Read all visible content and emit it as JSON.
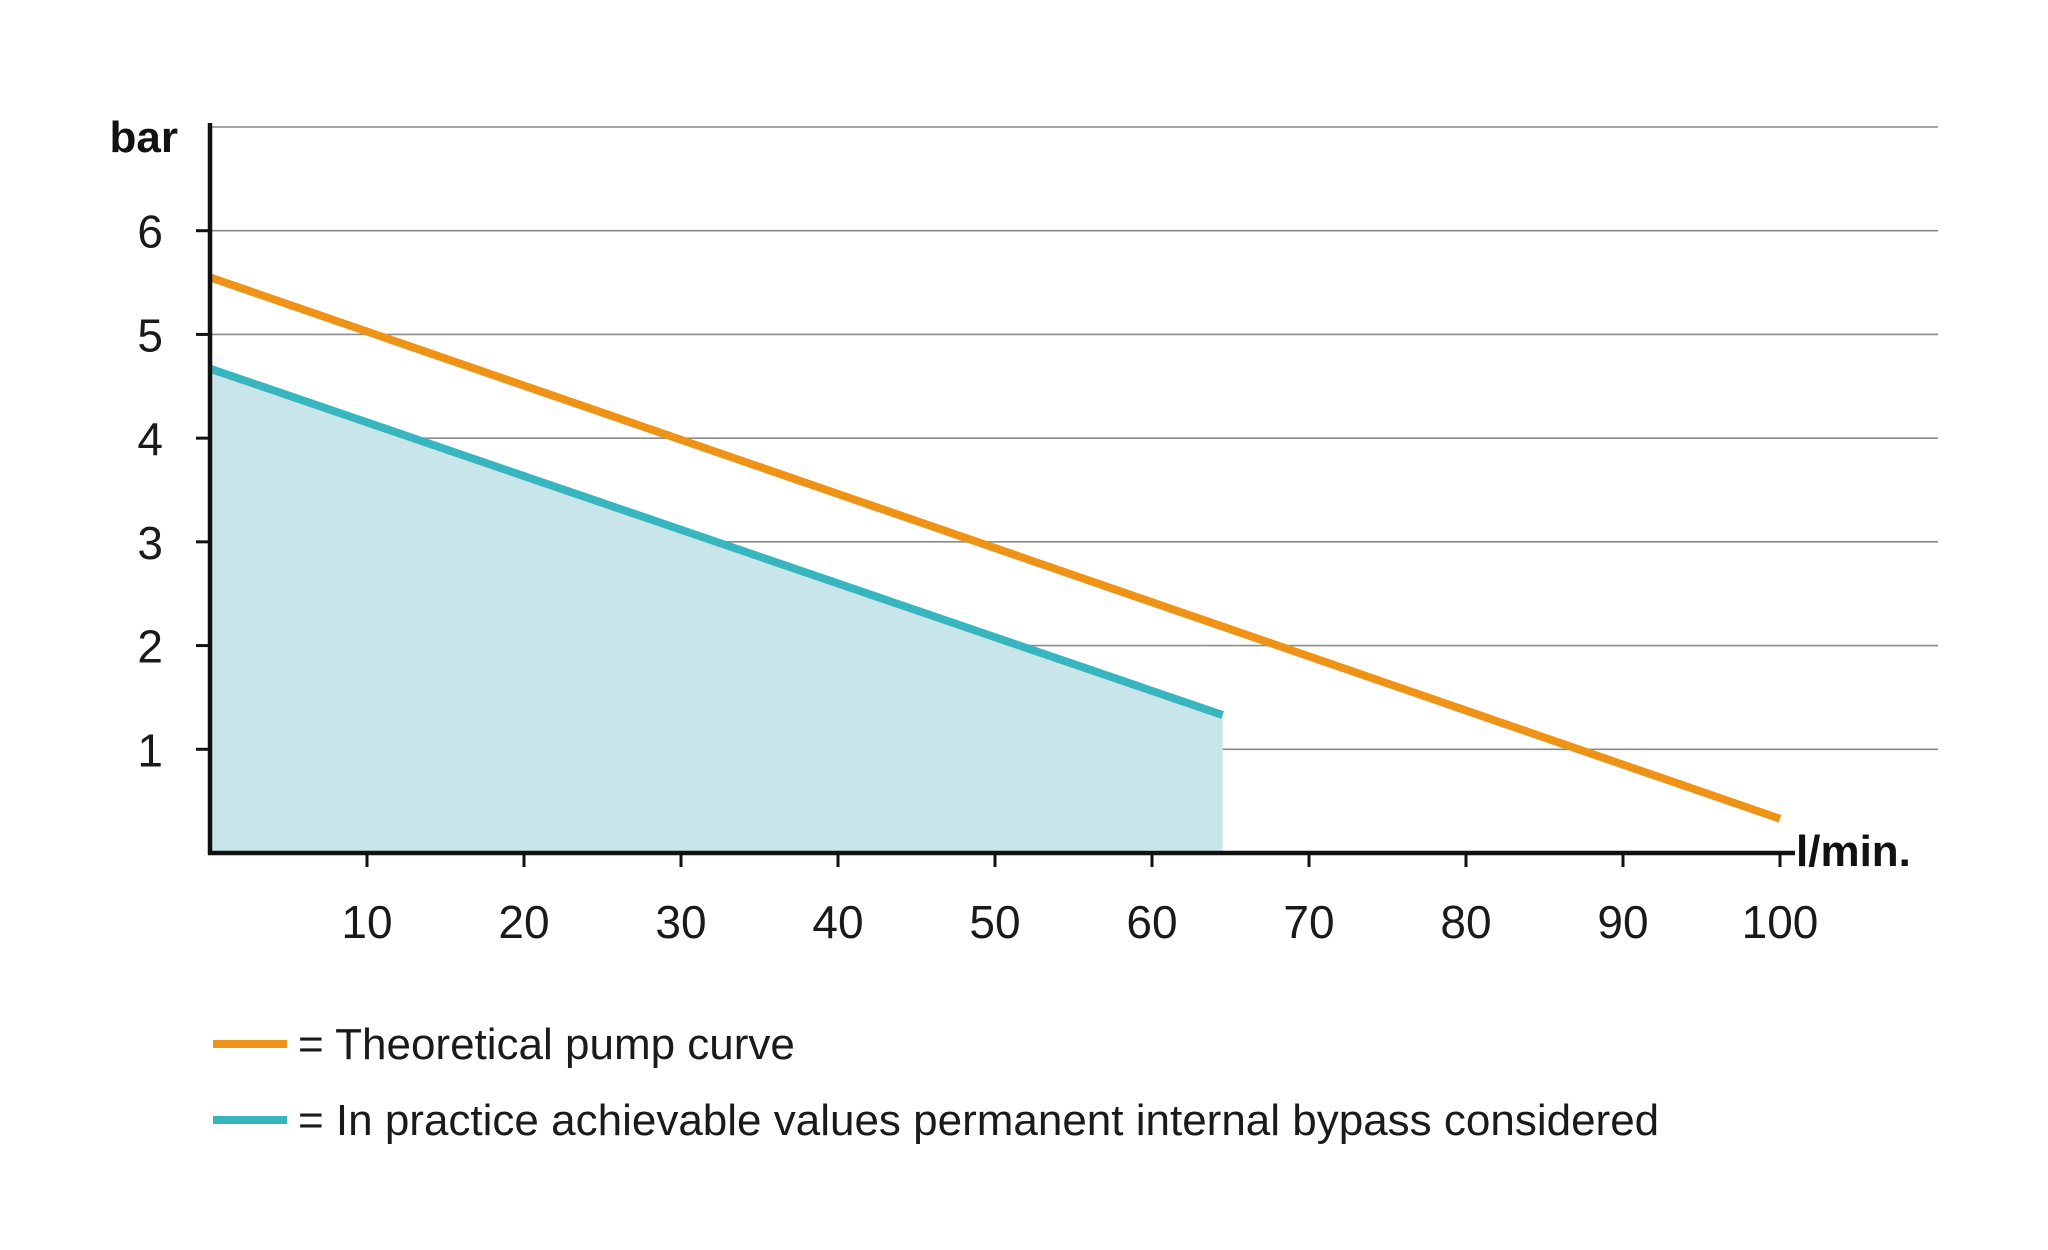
{
  "chart_data": {
    "type": "line",
    "xlabel": "l/min.",
    "ylabel": "bar",
    "xlim": [
      0,
      100
    ],
    "ylim": [
      0,
      7
    ],
    "x_ticks": [
      10,
      20,
      30,
      40,
      50,
      60,
      70,
      80,
      90,
      100
    ],
    "y_ticks": [
      1,
      2,
      3,
      4,
      5,
      6
    ],
    "grid": true,
    "legend_position": "bottom-left",
    "series": [
      {
        "name": "= Theoretical pump curve",
        "color": "#ee9316",
        "fill": false,
        "x": [
          0,
          100
        ],
        "y": [
          5.55,
          0.33
        ]
      },
      {
        "name": "= In practice achievable values permanent internal bypass considered",
        "color": "#37b6c0",
        "fill": true,
        "fill_color": "#c8e5e9",
        "x": [
          0,
          64.5
        ],
        "y": [
          4.67,
          1.33
        ]
      }
    ]
  }
}
